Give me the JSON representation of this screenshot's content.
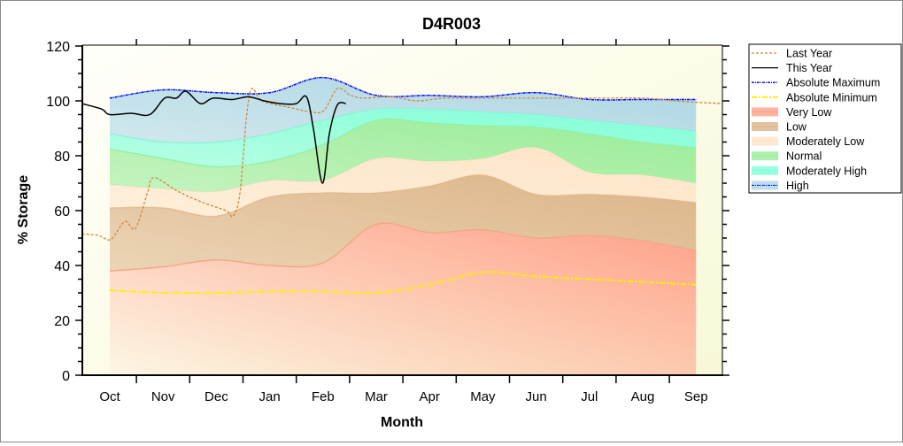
{
  "chart_data": {
    "type": "area",
    "title": "D4R003",
    "xlabel": "Month",
    "ylabel": "% Storage",
    "ylim": [
      0,
      120
    ],
    "yticks": [
      0,
      20,
      40,
      60,
      80,
      100,
      120
    ],
    "categories": [
      "Oct",
      "Nov",
      "Dec",
      "Jan",
      "Feb",
      "Mar",
      "Apr",
      "May",
      "Jun",
      "Jul",
      "Aug",
      "Sep"
    ],
    "legend_position": "right",
    "bands": [
      {
        "name": "Very Low",
        "color": "#ffa088",
        "top": [
          38,
          39.5,
          42,
          40,
          41,
          55,
          52,
          53,
          50,
          51,
          49,
          45.5
        ]
      },
      {
        "name": "Low",
        "color": "#dcb488",
        "top": [
          61,
          61,
          58,
          65,
          66.5,
          66.5,
          69,
          73,
          66,
          66,
          65,
          63
        ]
      },
      {
        "name": "Moderately Low",
        "color": "#ffe4c8",
        "top": [
          69.5,
          68,
          67,
          71,
          71,
          79,
          78,
          79,
          83,
          74,
          73,
          70
        ]
      },
      {
        "name": "Normal",
        "color": "#98ec98",
        "top": [
          82.5,
          79,
          76,
          78,
          84,
          93,
          92,
          91,
          90.5,
          88,
          85,
          83
        ]
      },
      {
        "name": "Moderately High",
        "color": "#80ffd8",
        "top": [
          88,
          85,
          85,
          88,
          93,
          97,
          97,
          96,
          95,
          93,
          91,
          89
        ]
      },
      {
        "name": "High",
        "color": "#acd6e6",
        "top": [
          101,
          104,
          103,
          103,
          108.5,
          102,
          102,
          101.5,
          103,
          100.5,
          100.5,
          100.5
        ]
      }
    ],
    "lines": [
      {
        "name": "Absolute Maximum",
        "color": "#0000ff",
        "values": [
          101,
          104,
          103,
          103,
          108.5,
          102,
          102,
          101.5,
          103,
          100.5,
          100.5,
          100.5
        ]
      },
      {
        "name": "Absolute Minimum",
        "color": "#ffee00",
        "values": [
          31,
          30,
          30,
          30.5,
          30.5,
          30,
          33,
          37.5,
          36,
          35,
          34,
          33
        ]
      }
    ],
    "this_year": {
      "name": "This Year",
      "color": "#000000",
      "points": [
        [
          -0.52,
          99
        ],
        [
          -0.15,
          97
        ],
        [
          0,
          95
        ],
        [
          0.4,
          95.5
        ],
        [
          0.75,
          95
        ],
        [
          1.03,
          101
        ],
        [
          1.25,
          101
        ],
        [
          1.43,
          103.5
        ],
        [
          1.7,
          99
        ],
        [
          1.94,
          101
        ],
        [
          2.3,
          100.5
        ],
        [
          2.6,
          101.5
        ],
        [
          2.9,
          100
        ],
        [
          3.2,
          99
        ],
        [
          3.5,
          99
        ],
        [
          3.69,
          101.5
        ],
        [
          3.82,
          90
        ],
        [
          3.99,
          70
        ],
        [
          4.12,
          88
        ],
        [
          4.27,
          98.5
        ],
        [
          4.43,
          99
        ]
      ]
    },
    "last_year": {
      "name": "Last Year",
      "color": "#d2843c",
      "points": [
        [
          -0.52,
          51.5
        ],
        [
          -0.22,
          51
        ],
        [
          0.02,
          49.5
        ],
        [
          0.28,
          56
        ],
        [
          0.48,
          53.5
        ],
        [
          0.7,
          66
        ],
        [
          0.83,
          72
        ],
        [
          1.28,
          67
        ],
        [
          1.74,
          63
        ],
        [
          2.18,
          60
        ],
        [
          2.31,
          58
        ],
        [
          2.44,
          66
        ],
        [
          2.57,
          95
        ],
        [
          2.67,
          104.5
        ],
        [
          2.86,
          100
        ],
        [
          3.4,
          97.5
        ],
        [
          3.77,
          96
        ],
        [
          4.02,
          96.5
        ],
        [
          4.27,
          104.5
        ],
        [
          4.52,
          102
        ],
        [
          4.77,
          101
        ],
        [
          5.27,
          101.5
        ],
        [
          5.77,
          100
        ],
        [
          6.27,
          101
        ],
        [
          7.0,
          101
        ],
        [
          8.0,
          101
        ],
        [
          9.0,
          101
        ],
        [
          10.0,
          101
        ],
        [
          10.6,
          100
        ],
        [
          11.0,
          99.5
        ],
        [
          11.5,
          99
        ]
      ]
    },
    "legend": [
      "Last Year",
      "This Year",
      "Absolute Maximum",
      "Absolute Minimum",
      "Very Low",
      "Low",
      "Moderately Low",
      "Normal",
      "Moderately High",
      "High"
    ]
  }
}
